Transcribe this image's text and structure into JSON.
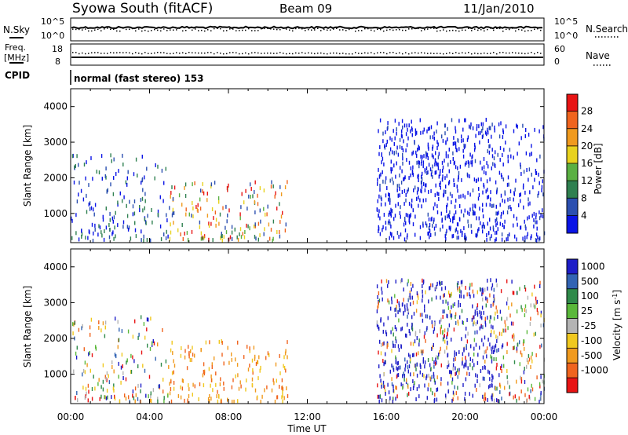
{
  "header": {
    "station": "Syowa South (fitACF)",
    "beam": "Beam 09",
    "date": "11/Jan/2010"
  },
  "strip1": {
    "left_label": "N.Sky",
    "left_ticks": [
      "10^5",
      "10^0"
    ],
    "right_label": "N.Search",
    "right_ticks": [
      "10^5",
      "10^0"
    ]
  },
  "strip2": {
    "left_label_1": "Freq.",
    "left_label_2": "[MHz]",
    "left_ticks": [
      "18",
      "8"
    ],
    "right_label": "Nave",
    "right_ticks": [
      "60",
      "0"
    ],
    "cpid_label": "CPID",
    "mode_text": "normal (fast stereo) 153"
  },
  "colors": {
    "power_scale": [
      "#0a14e6",
      "#2b4fb0",
      "#2f8050",
      "#5ab042",
      "#e8d21e",
      "#f09a1e",
      "#f0641e",
      "#e81414"
    ],
    "velocity_scale": [
      "#1e1ec8",
      "#3264b4",
      "#2f8a4a",
      "#5ab83a",
      "#b4b4b4",
      "#f0c81e",
      "#f09a1e",
      "#f0641e",
      "#e81414"
    ]
  },
  "chart_data": [
    {
      "type": "heatmap",
      "name": "power-panel",
      "ylabel": "Slant Range [km]",
      "ylim": [
        180,
        4500
      ],
      "yticks": [
        "1000",
        "2000",
        "3000",
        "4000"
      ],
      "x_tick_labels": [
        "00:00",
        "04:00",
        "08:00",
        "12:00",
        "16:00",
        "20:00",
        "00:00"
      ],
      "xlim_hours": [
        0,
        24
      ],
      "colorbar_label": "Power [dB]",
      "colorbar_ticks": [
        "28",
        "24",
        "20",
        "16",
        "12",
        "8",
        "4"
      ],
      "colorbar_range": [
        0,
        30
      ],
      "clusters": [
        {
          "hours": [
            0,
            5
          ],
          "range_km": [
            200,
            2600
          ],
          "level": "low-mid",
          "density": "sparse"
        },
        {
          "hours": [
            5,
            11
          ],
          "range_km": [
            200,
            1900
          ],
          "level": "mid-high",
          "density": "sparse"
        },
        {
          "hours": [
            15.5,
            21.5
          ],
          "range_km": [
            200,
            3600
          ],
          "level": "low",
          "density": "dense"
        },
        {
          "hours": [
            21.5,
            24
          ],
          "range_km": [
            200,
            3600
          ],
          "level": "low",
          "density": "sparse"
        }
      ]
    },
    {
      "type": "heatmap",
      "name": "velocity-panel",
      "ylabel": "Slant Range [km]",
      "ylim": [
        180,
        4500
      ],
      "yticks": [
        "1000",
        "2000",
        "3000",
        "4000"
      ],
      "x_tick_labels": [
        "00:00",
        "04:00",
        "08:00",
        "12:00",
        "16:00",
        "20:00",
        "00:00"
      ],
      "xlim_hours": [
        0,
        24
      ],
      "xlabel": "Time UT",
      "colorbar_label": "Velocity [m s^-1]",
      "colorbar_ticks": [
        "1000",
        "500",
        "100",
        "25",
        "-25",
        "-100",
        "-500",
        "-1000"
      ],
      "clusters": [
        {
          "hours": [
            0,
            5
          ],
          "range_km": [
            200,
            2600
          ],
          "level": "mixed",
          "density": "sparse"
        },
        {
          "hours": [
            5,
            11
          ],
          "range_km": [
            200,
            1900
          ],
          "level": "negative",
          "density": "sparse"
        },
        {
          "hours": [
            15.5,
            21.5
          ],
          "range_km": [
            200,
            3600
          ],
          "level": "positive-mixed",
          "density": "dense"
        },
        {
          "hours": [
            21.5,
            24
          ],
          "range_km": [
            200,
            3600
          ],
          "level": "mixed",
          "density": "sparse"
        }
      ]
    }
  ]
}
